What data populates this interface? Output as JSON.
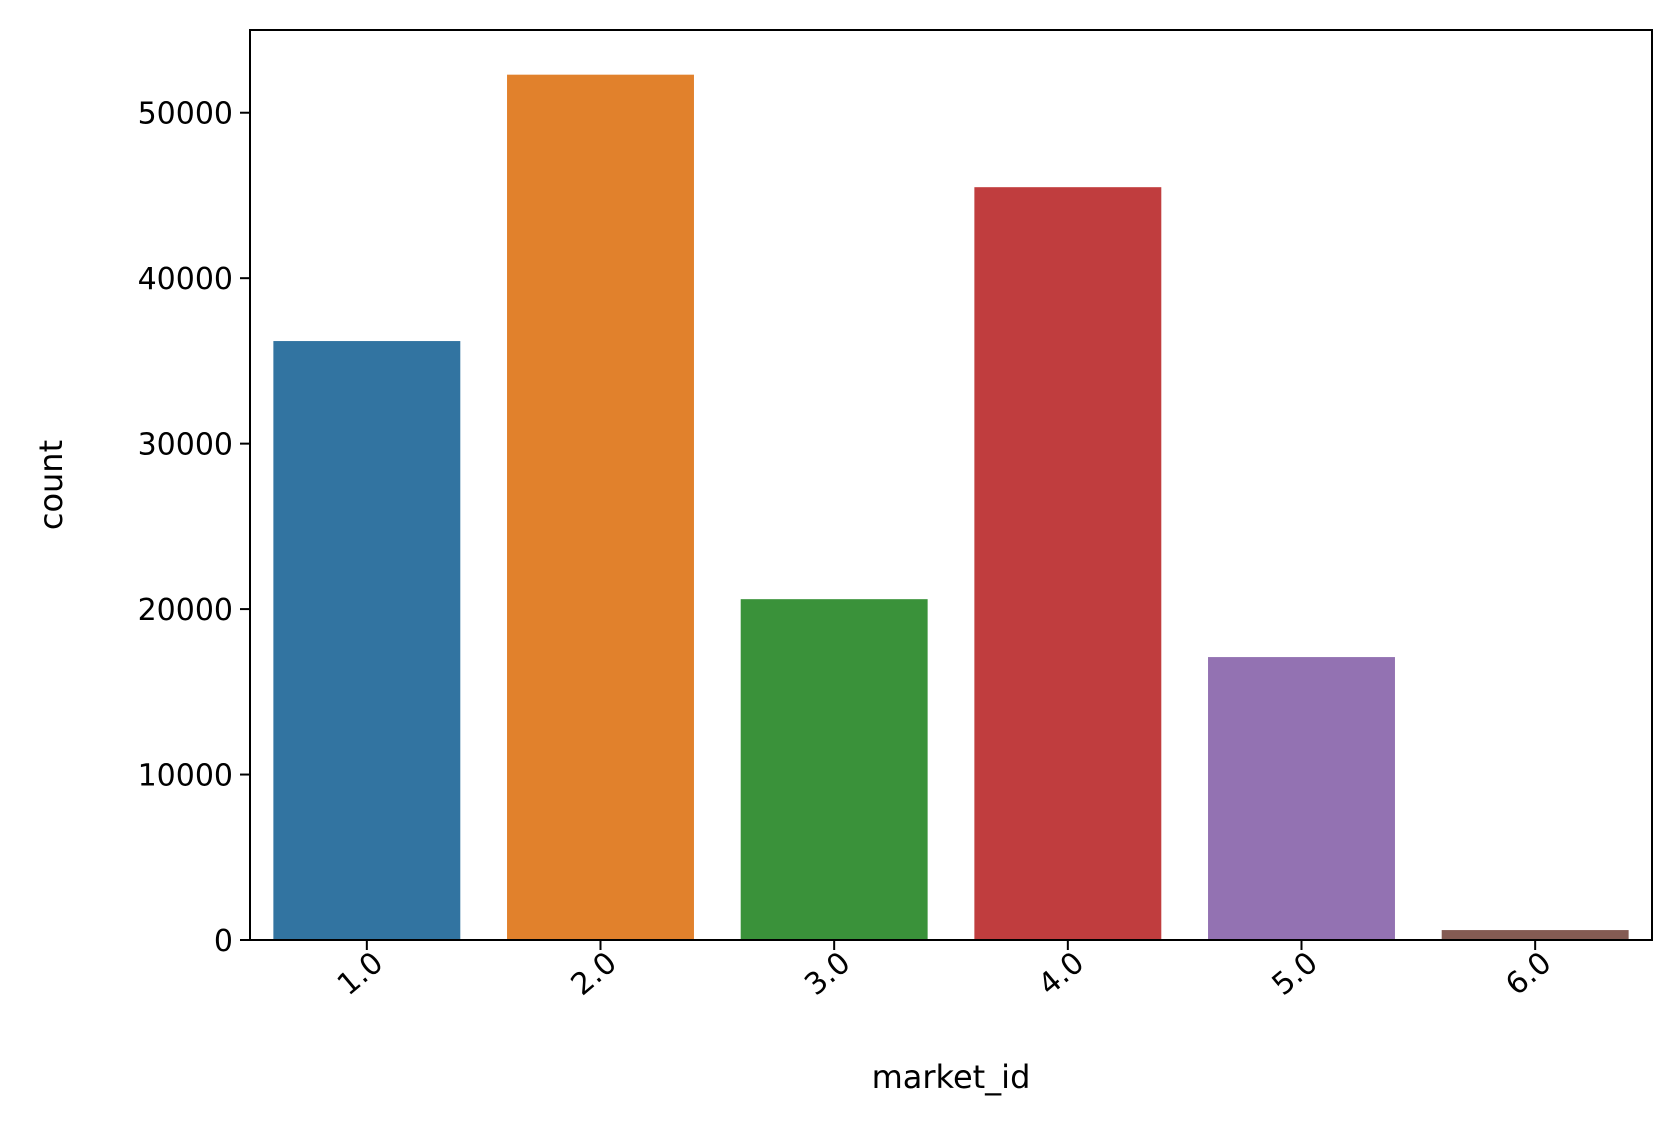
{
  "chart_data": {
    "type": "bar",
    "xlabel": "market_id",
    "ylabel": "count",
    "categories": [
      "1.0",
      "2.0",
      "3.0",
      "4.0",
      "5.0",
      "6.0"
    ],
    "values": [
      36200,
      52300,
      20600,
      45500,
      17100,
      600
    ],
    "colors": [
      "#3274a1",
      "#e1812c",
      "#3a923a",
      "#c03d3e",
      "#9372b2",
      "#845b53"
    ],
    "ylim": [
      0,
      55000
    ],
    "yticks": [
      0,
      10000,
      20000,
      30000,
      40000,
      50000
    ],
    "ytick_labels": [
      "0",
      "10000",
      "20000",
      "30000",
      "40000",
      "50000"
    ],
    "xtick_rotation": -40,
    "grid": false,
    "legend": "none"
  }
}
